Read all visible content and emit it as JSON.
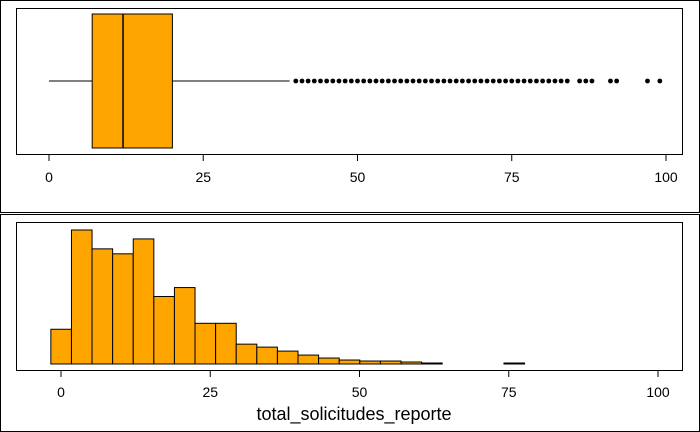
{
  "chart_data": [
    {
      "type": "boxplot",
      "title": "",
      "xlabel": "",
      "ylabel": "",
      "xlim": [
        -5,
        103
      ],
      "xticks": [
        0,
        25,
        50,
        75,
        100
      ],
      "grid": false,
      "legend": "none",
      "color": "#FFA500",
      "stats": {
        "whisker_low": 0,
        "q1": 7,
        "median": 12,
        "q3": 20,
        "whisker_high": 39
      },
      "outliers": [
        40,
        41,
        42,
        43,
        44,
        45,
        46,
        47,
        48,
        49,
        50,
        51,
        52,
        53,
        54,
        55,
        56,
        57,
        58,
        59,
        60,
        61,
        62,
        63,
        64,
        65,
        66,
        67,
        68,
        69,
        70,
        71,
        72,
        73,
        74,
        75,
        76,
        77,
        78,
        79,
        80,
        81,
        82,
        83,
        84,
        86,
        87,
        88,
        91,
        92,
        97,
        99
      ]
    },
    {
      "type": "histogram",
      "title": "",
      "xlabel": "total_solicitudes_reporte",
      "ylabel": "",
      "xlim": [
        -3,
        103
      ],
      "xticks": [
        0,
        25,
        50,
        75,
        100
      ],
      "grid": false,
      "legend": "none",
      "color": "#FFA500",
      "bin_width": 3.45,
      "bin_start": -1.7,
      "bin_counts": [
        35,
        135,
        116,
        111,
        126,
        68,
        77,
        41,
        41,
        20,
        17,
        13,
        9,
        6,
        4,
        3,
        3,
        2,
        1,
        0,
        0,
        0,
        1,
        0,
        0,
        0,
        0,
        0,
        0,
        0
      ]
    }
  ]
}
